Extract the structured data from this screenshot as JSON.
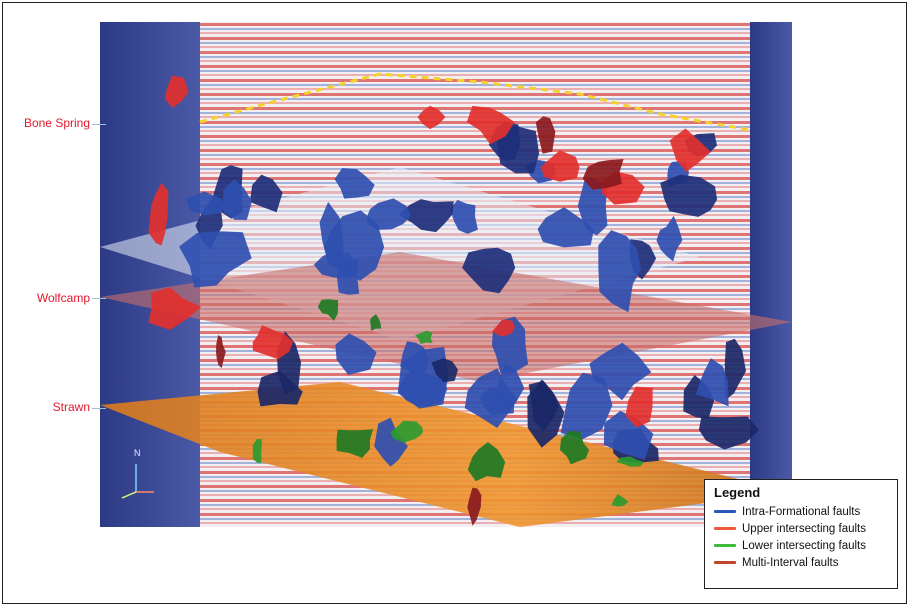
{
  "horizons": [
    {
      "label": "Bone Spring"
    },
    {
      "label": "Wolfcamp"
    },
    {
      "label": "Strawn"
    }
  ],
  "compass": {
    "north_label": "N"
  },
  "legend": {
    "title": "Legend",
    "items": [
      {
        "label": "Intra-Formational faults",
        "color": "#2e55b8"
      },
      {
        "label": "Upper intersecting faults",
        "color": "#f05a3c"
      },
      {
        "label": "Lower intersecting faults",
        "color": "#3dbb3a"
      },
      {
        "label": "Multi-Interval faults",
        "color": "#c0452d"
      }
    ]
  },
  "colors": {
    "intra": "#2f4fb0",
    "upper": "#e2302e",
    "lower": "#2c9a30",
    "multi": "#8a1a1e",
    "strawn_surface": "#e98a28",
    "wolfcamp_surface": "#c8706a",
    "side_panel": "#33408a"
  }
}
